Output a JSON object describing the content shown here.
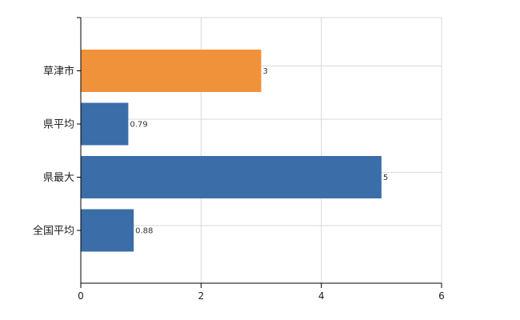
{
  "chart_data": {
    "type": "bar",
    "orientation": "horizontal",
    "categories": [
      "草津市",
      "県平均",
      "県最大",
      "全国平均"
    ],
    "values": [
      3,
      0.79,
      5,
      0.88
    ],
    "data_labels": [
      "3",
      "0.79",
      "5",
      "0.88"
    ],
    "xlim": [
      0,
      6
    ],
    "x_ticks": [
      0,
      2,
      4,
      6
    ],
    "grid": true,
    "legend": "none",
    "colors": {
      "highlight": "#F0923A",
      "default": "#3B6EA8",
      "grid": "#D9D9D9",
      "axis": "#000000"
    },
    "highlight_index": 0
  }
}
